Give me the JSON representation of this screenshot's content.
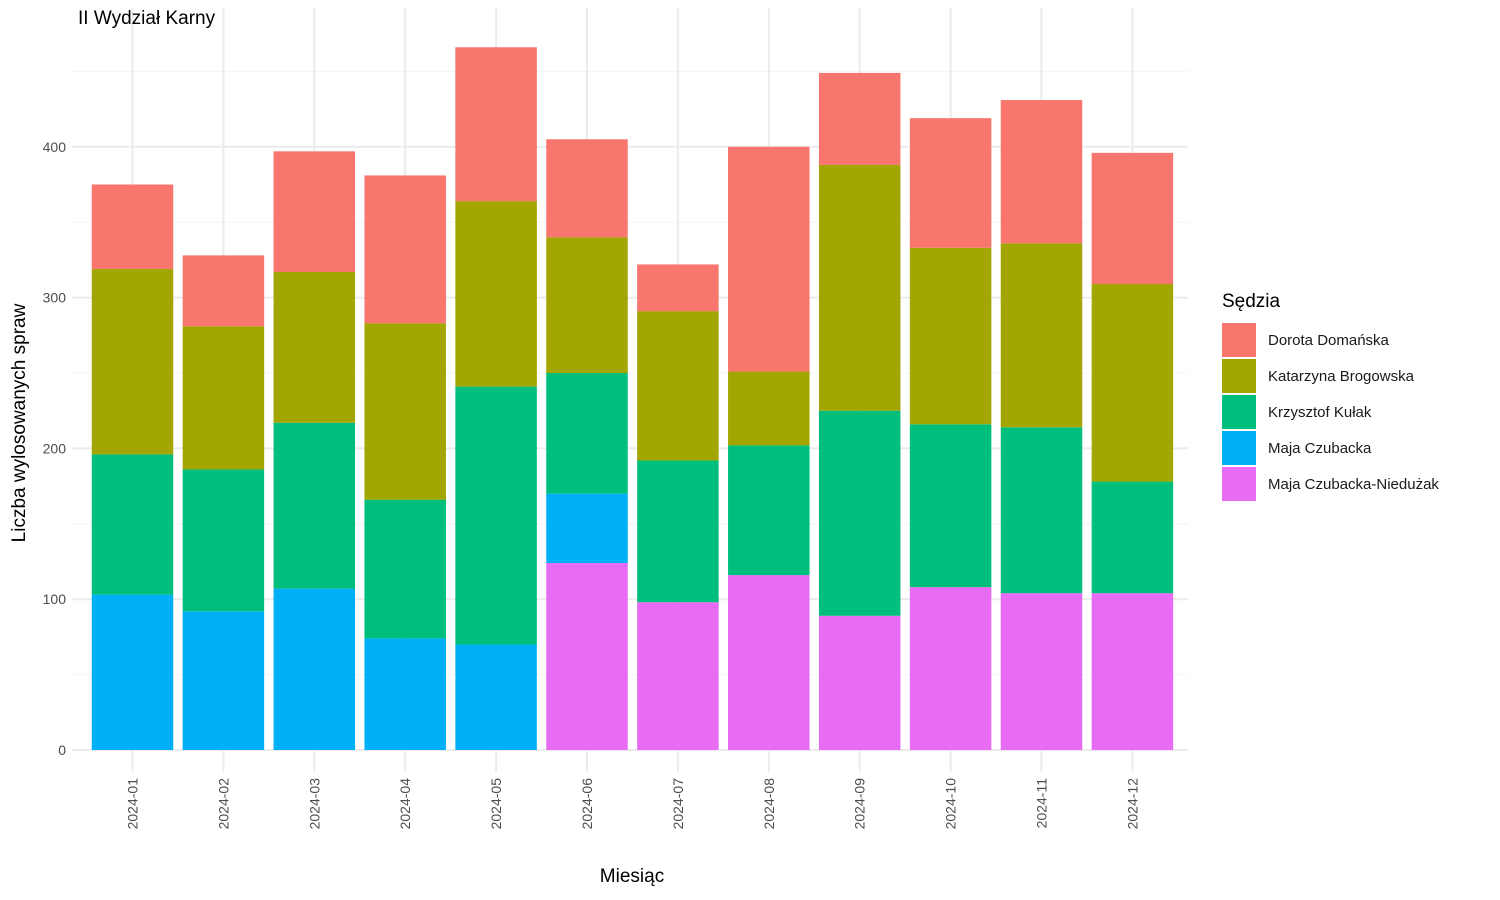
{
  "chart_data": {
    "type": "bar",
    "stacked": true,
    "title": "II Wydział Karny",
    "xlabel": "Miesiąc",
    "ylabel": "Liczba wylosowanych spraw",
    "ylim": [
      0,
      470
    ],
    "yticks": [
      0,
      100,
      200,
      300,
      400
    ],
    "grid": true,
    "legend_title": "Sędzia",
    "legend_position": "right",
    "categories": [
      "2024-01",
      "2024-02",
      "2024-03",
      "2024-04",
      "2024-05",
      "2024-06",
      "2024-07",
      "2024-08",
      "2024-09",
      "2024-10",
      "2024-11",
      "2024-12"
    ],
    "series": [
      {
        "name": "Maja Czubacka-Niedużak",
        "color": "#E76BF3",
        "values": [
          0,
          0,
          0,
          0,
          0,
          124,
          98,
          116,
          89,
          108,
          104,
          104
        ]
      },
      {
        "name": "Maja Czubacka",
        "color": "#00B0F6",
        "values": [
          103,
          92,
          107,
          74,
          70,
          46,
          0,
          0,
          0,
          0,
          0,
          0
        ]
      },
      {
        "name": "Krzysztof Kułak",
        "color": "#00BF7D",
        "values": [
          93,
          94,
          110,
          92,
          171,
          80,
          94,
          86,
          136,
          108,
          110,
          74
        ]
      },
      {
        "name": "Katarzyna Brogowska",
        "color": "#A3A500",
        "values": [
          123,
          95,
          100,
          117,
          123,
          90,
          99,
          49,
          163,
          117,
          122,
          131
        ]
      },
      {
        "name": "Dorota Domańska",
        "color": "#F8766D",
        "values": [
          56,
          47,
          80,
          98,
          102,
          65,
          31,
          149,
          61,
          86,
          95,
          87
        ]
      }
    ],
    "legend_order": [
      "Dorota Domańska",
      "Katarzyna Brogowska",
      "Krzysztof Kułak",
      "Maja Czubacka",
      "Maja Czubacka-Niedużak"
    ]
  }
}
